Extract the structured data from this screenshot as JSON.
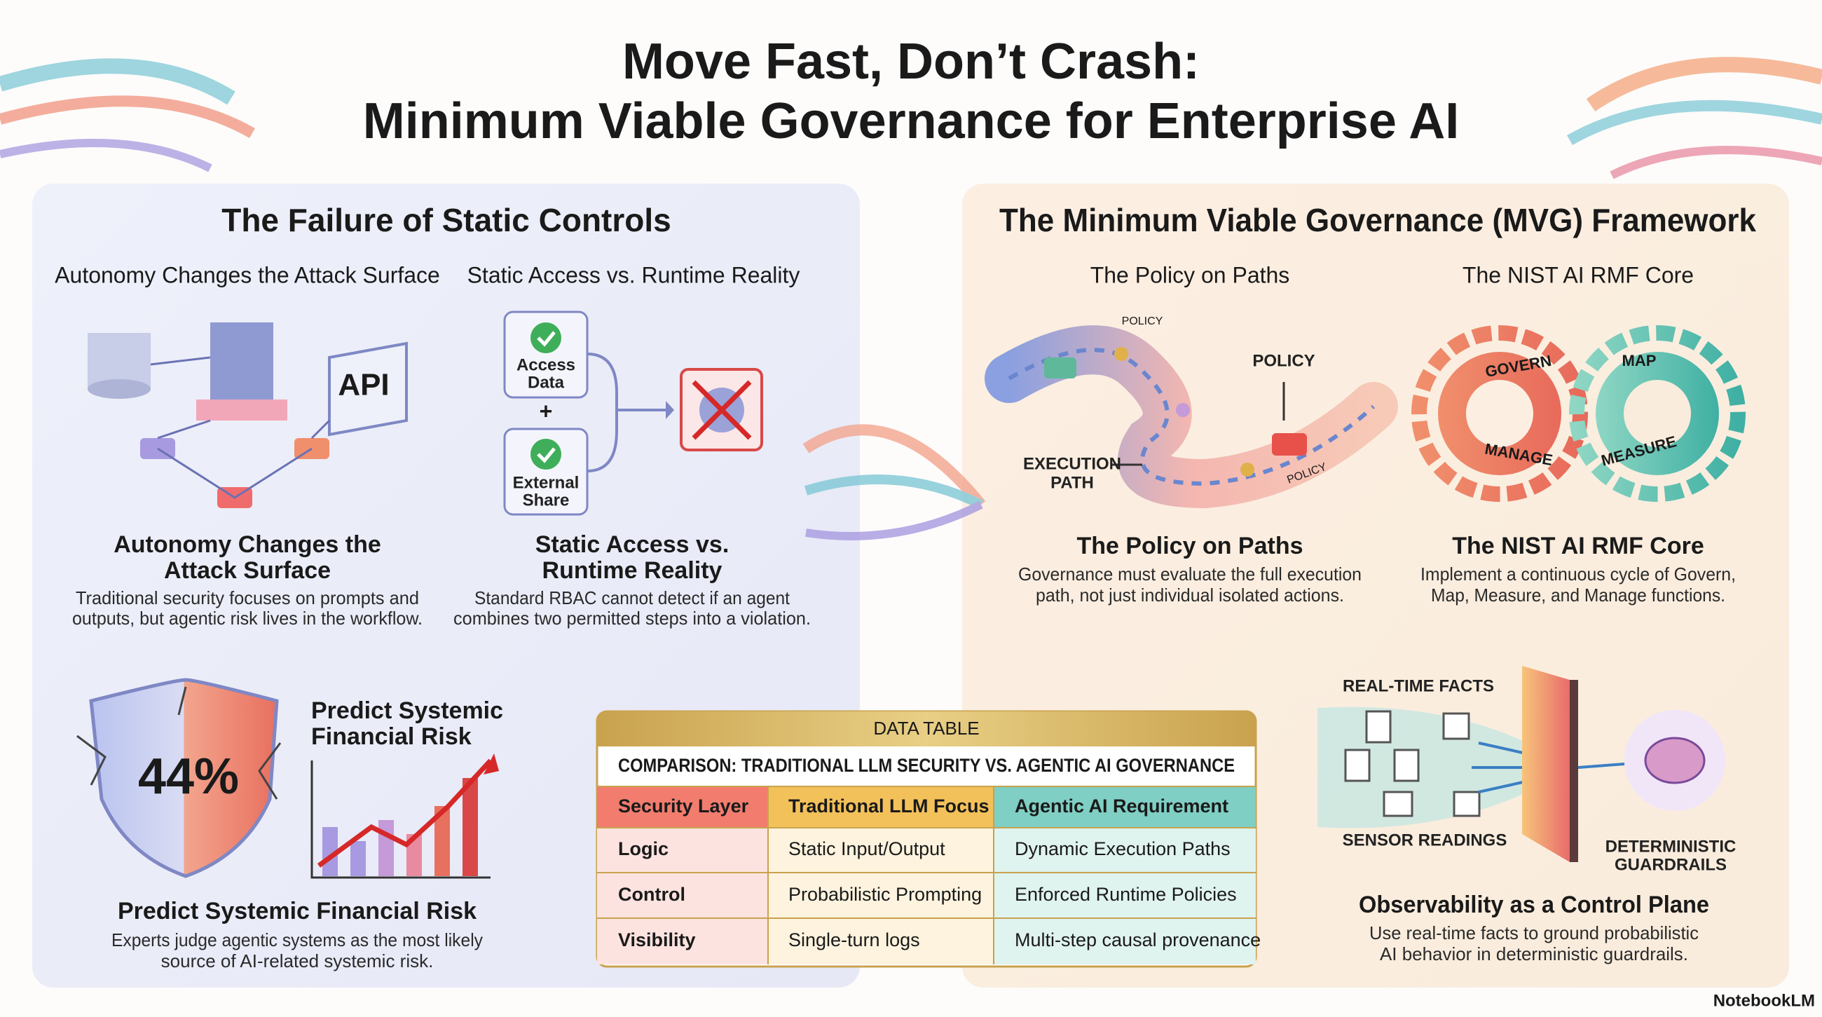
{
  "header": {
    "title": [
      "Move Fast, Don’t Crash:",
      "Minimum Viable Governance for Enterprise AI"
    ]
  },
  "left_panel": {
    "heading": "The Failure of Static Controls",
    "subheads": [
      "Autonomy Changes the Attack Surface",
      "Static Access vs. Runtime Reality"
    ],
    "illustration": {
      "api": "API",
      "access_data": [
        "Access",
        "Data"
      ],
      "plus": "+",
      "external_share": [
        "External",
        "Share"
      ]
    },
    "cards": [
      {
        "title": [
          "Autonomy Changes the",
          "Attack Surface"
        ],
        "body": [
          "Traditional security focuses on prompts and",
          "outputs, but agentic risk lives in the workflow."
        ]
      },
      {
        "title": [
          "Static Access vs.",
          "Runtime Reality"
        ],
        "body": [
          "Standard RBAC cannot detect if an agent",
          "combines two permitted steps into a violation."
        ]
      }
    ],
    "risk": {
      "stat": "44%",
      "chart_label": [
        "Predict Systemic",
        "Financial Risk"
      ],
      "title": "Predict Systemic Financial Risk",
      "body": [
        "Experts judge agentic systems as the most likely",
        "source of AI-related systemic risk."
      ]
    }
  },
  "table": {
    "label": "DATA TABLE",
    "caption": "COMPARISON: TRADITIONAL LLM SECURITY VS. AGENTIC AI GOVERNANCE",
    "columns": [
      "Security Layer",
      "Traditional LLM Focus",
      "Agentic AI Requirement"
    ],
    "rows": [
      [
        "Logic",
        "Static Input/Output",
        "Dynamic Execution Paths"
      ],
      [
        "Control",
        "Probabilistic Prompting",
        "Enforced Runtime Policies"
      ],
      [
        "Visibility",
        "Single-turn logs",
        "Multi-step causal provenance"
      ]
    ]
  },
  "right_panel": {
    "heading": "The Minimum Viable Governance (MVG) Framework",
    "subheads": [
      "The Policy on Paths",
      "The NIST AI RMF Core"
    ],
    "policy_illustration": {
      "top_label": "POLICY",
      "policy": "POLICY",
      "execution_path": [
        "EXECUTION",
        "PATH"
      ],
      "bottom_label": "POLICY"
    },
    "gears": {
      "govern": "GOVERN",
      "map": "MAP",
      "manage": "MANAGE",
      "measure": "MEASURE"
    },
    "cards": [
      {
        "title": "The Policy on Paths",
        "body": [
          "Governance must evaluate the full execution",
          "path, not just individual isolated actions."
        ]
      },
      {
        "title": "The NIST AI RMF Core",
        "body": [
          "Implement a continuous cycle of Govern,",
          "Map, Measure, and Manage functions."
        ]
      }
    ],
    "observability": {
      "facts": "REAL-TIME FACTS",
      "sensors": "SENSOR READINGS",
      "guardrails": [
        "DETERMINISTIC",
        "GUARDRAILS"
      ],
      "title": "Observability as a Control Plane",
      "body": [
        "Use real-time facts to ground probabilistic",
        "AI behavior in deterministic guardrails."
      ]
    }
  },
  "footer": {
    "brand": "NotebookLM"
  }
}
